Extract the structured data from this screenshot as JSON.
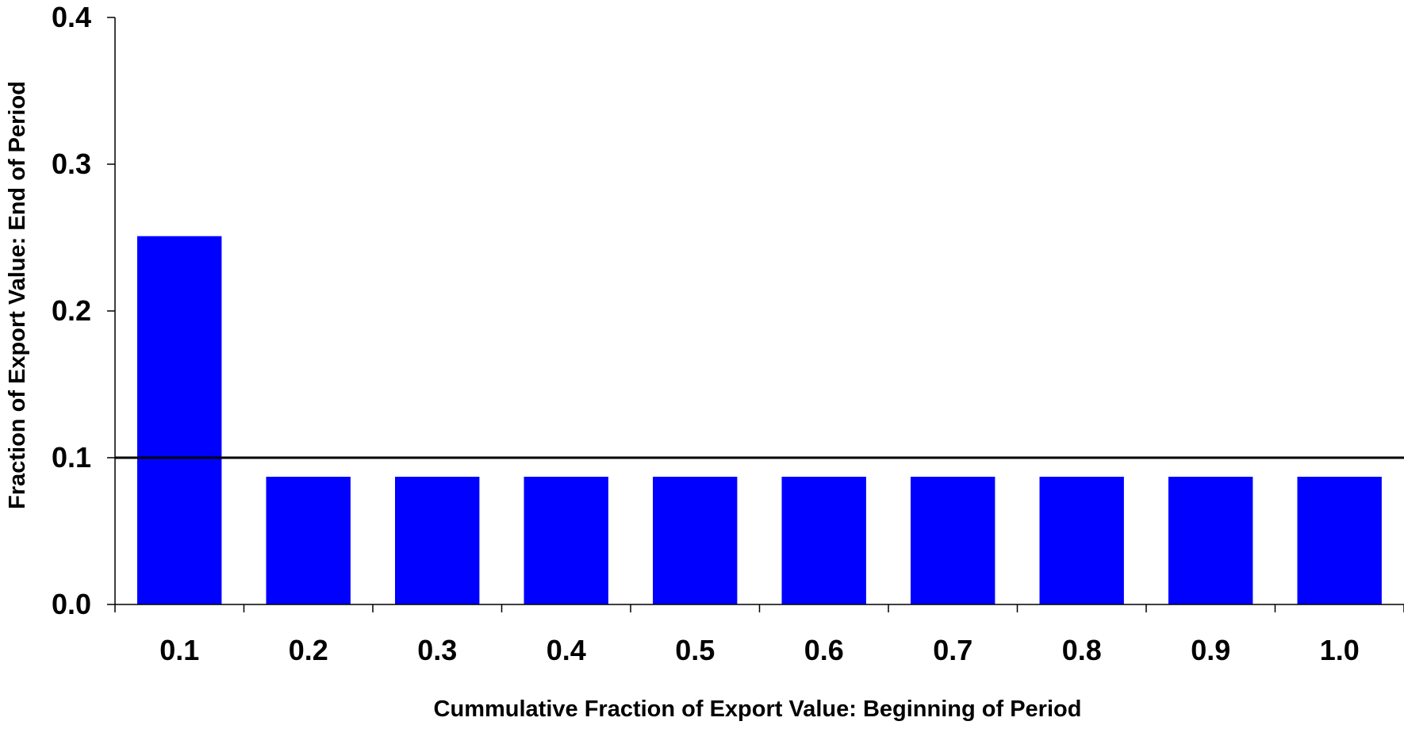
{
  "chart_data": {
    "type": "bar",
    "title": "",
    "xlabel": "Cummulative Fraction of Export Value: Beginning of Period",
    "ylabel": "Fraction of Export Value: End of Period",
    "categories": [
      "0.1",
      "0.2",
      "0.3",
      "0.4",
      "0.5",
      "0.6",
      "0.7",
      "0.8",
      "0.9",
      "1.0"
    ],
    "values": [
      0.251,
      0.087,
      0.087,
      0.087,
      0.087,
      0.087,
      0.087,
      0.087,
      0.087,
      0.087
    ],
    "ylim": [
      0,
      0.4
    ],
    "yticks": [
      "0.0",
      "0.1",
      "0.2",
      "0.3",
      "0.4"
    ],
    "reference_line": 0.1,
    "bar_color": "#0000ff",
    "grid": false,
    "legend": "none"
  }
}
